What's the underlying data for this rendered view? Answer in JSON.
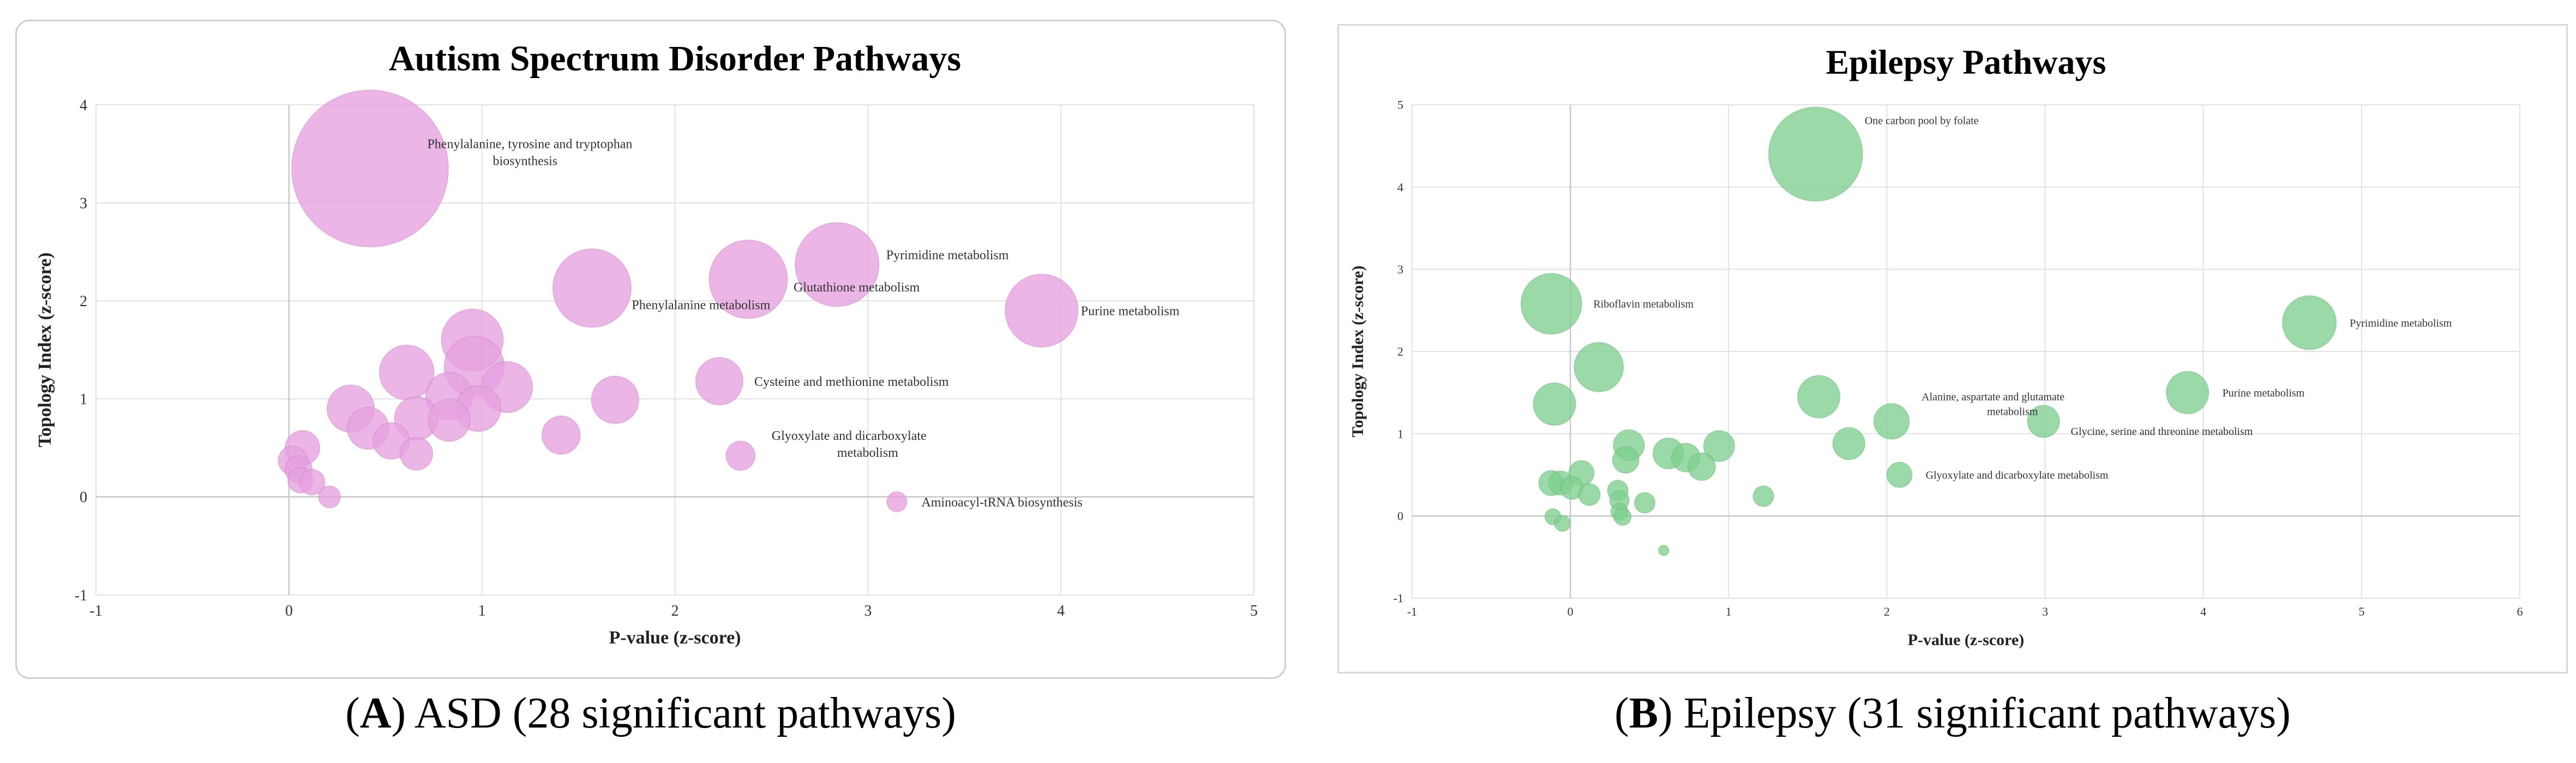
{
  "figures": [
    {
      "caption_letter": "A",
      "caption_text": "ASD (28 significant pathways)",
      "chart_data": {
        "type": "scatter",
        "title": "Autism Spectrum Disorder Pathways",
        "xlabel": "P-value (z-score)",
        "ylabel": "Topology Index (z-score)",
        "xlim": [
          -1,
          5
        ],
        "ylim": [
          -1,
          4
        ],
        "xticks": [
          -1,
          0,
          1,
          2,
          3,
          4,
          5
        ],
        "yticks": [
          -1,
          0,
          1,
          2,
          3,
          4
        ],
        "grid": true,
        "color": "#e6a0df",
        "points": [
          {
            "x": 0.42,
            "y": 3.35,
            "size": 8.6,
            "label": "Phenylalanine, tyrosine and tryptophan biosynthesis",
            "label_lines": [
              "Phenylalanine, tyrosine and tryptophan",
              "biosynthesis"
            ]
          },
          {
            "x": 2.84,
            "y": 2.37,
            "size": 4.6,
            "label": "Pyrimidine metabolism",
            "label_lines": [
              "Pyrimidine metabolism"
            ]
          },
          {
            "x": 2.38,
            "y": 2.22,
            "size": 4.3,
            "label": "Glutathione metabolism",
            "label_lines": [
              "Glutathione metabolism"
            ]
          },
          {
            "x": 1.57,
            "y": 2.13,
            "size": 4.3,
            "label": "Phenylalanine metabolism",
            "label_lines": [
              "Phenylalanine metabolism"
            ]
          },
          {
            "x": 3.9,
            "y": 1.9,
            "size": 4.0,
            "label": "Purine metabolism",
            "label_lines": [
              "Purine metabolism"
            ]
          },
          {
            "x": 2.23,
            "y": 1.18,
            "size": 2.6,
            "label": "Cysteine and methionine metabolism",
            "label_lines": [
              "Cysteine and methionine metabolism"
            ]
          },
          {
            "x": 2.34,
            "y": 0.42,
            "size": 1.6,
            "label": "Glyoxylate and dicarboxylate metabolism",
            "label_lines": [
              "Glyoxylate and dicarboxylate",
              "metabolism"
            ]
          },
          {
            "x": 3.15,
            "y": -0.05,
            "size": 1.1,
            "label": "Aminoacyl-tRNA biosynthesis",
            "label_lines": [
              "Aminoacyl-tRNA biosynthesis"
            ]
          },
          {
            "x": 0.95,
            "y": 1.6,
            "size": 3.4
          },
          {
            "x": 0.96,
            "y": 1.33,
            "size": 3.3
          },
          {
            "x": 0.61,
            "y": 1.27,
            "size": 3.0
          },
          {
            "x": 1.13,
            "y": 1.12,
            "size": 2.8
          },
          {
            "x": 0.83,
            "y": 1.03,
            "size": 2.6
          },
          {
            "x": 1.69,
            "y": 0.99,
            "size": 2.6
          },
          {
            "x": 0.32,
            "y": 0.9,
            "size": 2.6
          },
          {
            "x": 0.98,
            "y": 0.9,
            "size": 2.5
          },
          {
            "x": 0.66,
            "y": 0.8,
            "size": 2.4
          },
          {
            "x": 0.83,
            "y": 0.78,
            "size": 2.3
          },
          {
            "x": 0.41,
            "y": 0.7,
            "size": 2.3
          },
          {
            "x": 1.41,
            "y": 0.63,
            "size": 2.1
          },
          {
            "x": 0.53,
            "y": 0.57,
            "size": 2.0
          },
          {
            "x": 0.07,
            "y": 0.5,
            "size": 1.9
          },
          {
            "x": 0.66,
            "y": 0.44,
            "size": 1.8
          },
          {
            "x": 0.02,
            "y": 0.37,
            "size": 1.6
          },
          {
            "x": 0.05,
            "y": 0.28,
            "size": 1.5
          },
          {
            "x": 0.06,
            "y": 0.17,
            "size": 1.4
          },
          {
            "x": 0.12,
            "y": 0.15,
            "size": 1.4
          },
          {
            "x": 0.21,
            "y": 0.0,
            "size": 1.2
          }
        ]
      }
    },
    {
      "caption_letter": "B",
      "caption_text": "Epilepsy (31 significant pathways)",
      "chart_data": {
        "type": "scatter",
        "title": "Epilepsy Pathways",
        "xlabel": "P-value (z-score)",
        "ylabel": "Topology Index (z-score)",
        "xlim": [
          -1,
          6
        ],
        "ylim": [
          -1,
          5
        ],
        "xticks": [
          -1,
          0,
          1,
          2,
          3,
          4,
          5,
          6
        ],
        "yticks": [
          -1,
          0,
          1,
          2,
          3,
          4,
          5
        ],
        "grid": true,
        "color": "#7fcf8f",
        "points": [
          {
            "x": 1.55,
            "y": 4.4,
            "size": 8.2,
            "label": "One carbon pool by folate",
            "label_lines": [
              "One carbon pool by folate"
            ]
          },
          {
            "x": -0.12,
            "y": 2.58,
            "size": 5.3,
            "label": "Riboflavin metabolism",
            "label_lines": [
              "Riboflavin metabolism"
            ]
          },
          {
            "x": 4.67,
            "y": 2.35,
            "size": 4.7,
            "label": "Pyrimidine metabolism",
            "label_lines": [
              "Pyrimidine metabolism"
            ]
          },
          {
            "x": 3.9,
            "y": 1.5,
            "size": 3.7,
            "label": "Purine metabolism",
            "label_lines": [
              "Purine metabolism"
            ]
          },
          {
            "x": 2.03,
            "y": 1.15,
            "size": 3.1,
            "label": "Alanine, aspartate and glutamate metabolism",
            "label_lines": [
              "Alanine, aspartate and glutamate",
              "metabolism"
            ]
          },
          {
            "x": 2.99,
            "y": 1.15,
            "size": 2.8,
            "label": "Glycine, serine and threonine metabolism",
            "label_lines": [
              "Glycine, serine and threonine metabolism"
            ]
          },
          {
            "x": 2.08,
            "y": 0.5,
            "size": 2.2,
            "label": "Glyoxylate and dicarboxylate metabolism",
            "label_lines": [
              "Glyoxylate and dicarboxylate metabolism"
            ]
          },
          {
            "x": 0.18,
            "y": 1.81,
            "size": 4.3
          },
          {
            "x": -0.1,
            "y": 1.36,
            "size": 3.7
          },
          {
            "x": 1.57,
            "y": 1.45,
            "size": 3.7
          },
          {
            "x": 1.76,
            "y": 0.88,
            "size": 2.8
          },
          {
            "x": 0.37,
            "y": 0.86,
            "size": 2.7
          },
          {
            "x": 0.94,
            "y": 0.85,
            "size": 2.7
          },
          {
            "x": 0.35,
            "y": 0.68,
            "size": 2.3
          },
          {
            "x": 0.62,
            "y": 0.76,
            "size": 2.7
          },
          {
            "x": 0.73,
            "y": 0.71,
            "size": 2.5
          },
          {
            "x": 0.83,
            "y": 0.6,
            "size": 2.4
          },
          {
            "x": 0.07,
            "y": 0.52,
            "size": 2.2
          },
          {
            "x": -0.12,
            "y": 0.4,
            "size": 2.2
          },
          {
            "x": -0.06,
            "y": 0.4,
            "size": 2.1
          },
          {
            "x": 0.01,
            "y": 0.34,
            "size": 2.0
          },
          {
            "x": 0.12,
            "y": 0.26,
            "size": 1.9
          },
          {
            "x": 0.3,
            "y": 0.31,
            "size": 1.8
          },
          {
            "x": 0.31,
            "y": 0.19,
            "size": 1.7
          },
          {
            "x": 0.47,
            "y": 0.16,
            "size": 1.8
          },
          {
            "x": 1.22,
            "y": 0.24,
            "size": 1.8
          },
          {
            "x": 0.31,
            "y": 0.05,
            "size": 1.5
          },
          {
            "x": 0.33,
            "y": -0.01,
            "size": 1.5
          },
          {
            "x": -0.11,
            "y": -0.01,
            "size": 1.4
          },
          {
            "x": -0.05,
            "y": -0.09,
            "size": 1.4
          },
          {
            "x": 0.59,
            "y": -0.42,
            "size": 0.9
          }
        ]
      }
    }
  ]
}
